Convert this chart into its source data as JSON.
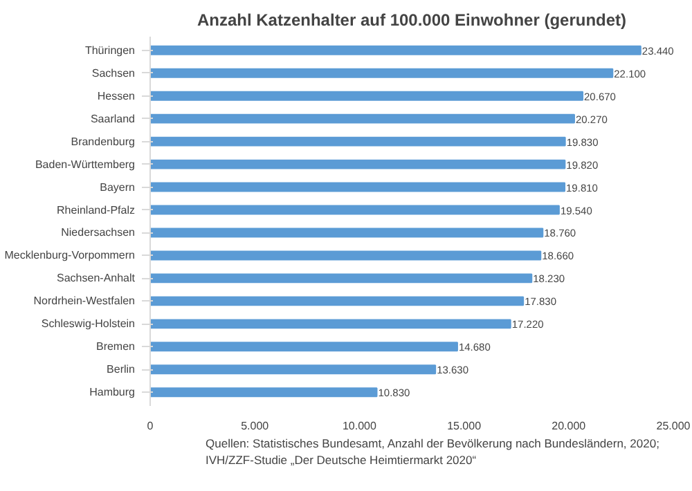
{
  "chart_data": {
    "type": "bar",
    "orientation": "horizontal",
    "title": "Anzahl Katzenhalter auf 100.000 Einwohner (gerundet)",
    "categories": [
      "Thüringen",
      "Sachsen",
      "Hessen",
      "Saarland",
      "Brandenburg",
      "Baden-Württemberg",
      "Bayern",
      "Rheinland-Pfalz",
      "Niedersachsen",
      "Mecklenburg-Vorpommern",
      "Sachsen-Anhalt",
      "Nordrhein-Westfalen",
      "Schleswig-Holstein",
      "Bremen",
      "Berlin",
      "Hamburg"
    ],
    "values": [
      23440,
      22100,
      20670,
      20270,
      19830,
      19820,
      19810,
      19540,
      18760,
      18660,
      18230,
      17830,
      17220,
      14680,
      13630,
      10830
    ],
    "value_labels": [
      "23.440",
      "22.100",
      "20.670",
      "20.270",
      "19.830",
      "19.820",
      "19.810",
      "19.540",
      "18.760",
      "18.660",
      "18.230",
      "17.830",
      "17.220",
      "14.680",
      "13.630",
      "10.830"
    ],
    "color": "#5b9bd5",
    "xlim": [
      0,
      25000
    ],
    "xticks": [
      {
        "value": 0,
        "label": "0"
      },
      {
        "value": 5000,
        "label": "5.000"
      },
      {
        "value": 10000,
        "label": "10.000"
      },
      {
        "value": 15000,
        "label": "15.000"
      },
      {
        "value": 20000,
        "label": "20.000"
      },
      {
        "value": 25000,
        "label": "25.000"
      }
    ],
    "grid": false,
    "annotations": [
      "Quellen: Statistisches Bundesamt, Anzahl der Bevölkerung nach Bundesländern, 2020; IVH/ZZF-Studie „Der Deutsche Heimtiermarkt 2020“"
    ]
  }
}
